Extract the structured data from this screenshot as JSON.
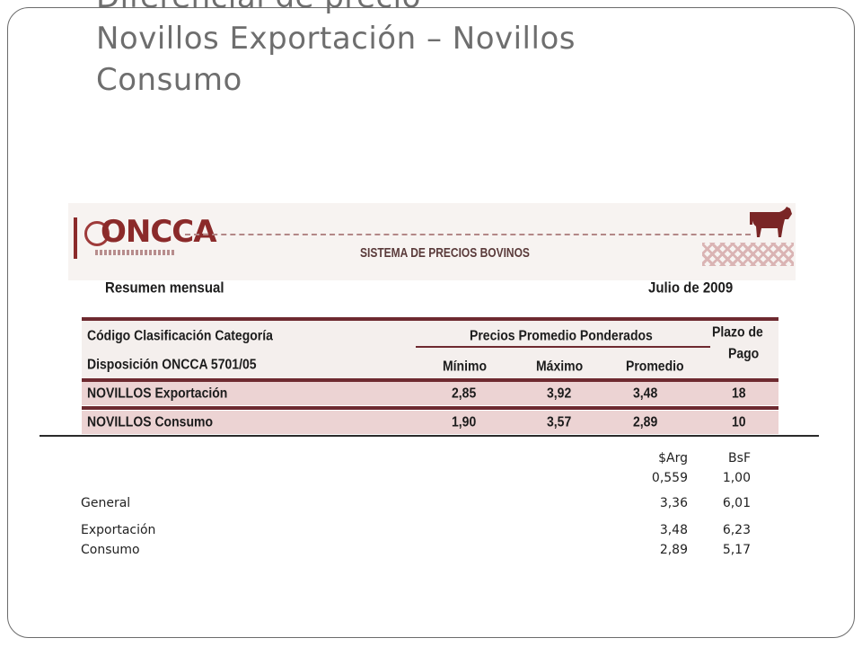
{
  "slide": {
    "title_lines": [
      "Diferencial de precio",
      "Novillos Exportación – Novillos",
      "Consumo"
    ]
  },
  "banner": {
    "logo_text": "ONCCA",
    "system_title": "SISTEMA DE PRECIOS BOVINOS"
  },
  "report": {
    "heading": "Resumen mensual",
    "period": "Julio de 2009",
    "header_col1_line1": "Código  Clasificación Categoría",
    "header_col1_line2": "Disposición ONCCA 5701/05",
    "header_prices": "Precios Promedio Ponderados",
    "header_min": "Mínimo",
    "header_max": "Máximo",
    "header_avg": "Promedio",
    "header_term_line1": "Plazo de",
    "header_term_line2": "Pago",
    "rows": [
      {
        "label": "NOVILLOS Exportación",
        "min": "2,85",
        "max": "3,92",
        "avg": "3,48",
        "term": "18"
      },
      {
        "label": "NOVILLOS Consumo",
        "min": "1,90",
        "max": "3,57",
        "avg": "2,89",
        "term": "10"
      }
    ]
  },
  "summary": {
    "col_arg": "$Arg",
    "col_bsf": "BsF",
    "rate_arg": "0,559",
    "rate_bsf": "1,00",
    "rows": [
      {
        "label": "General",
        "arg": "3,36",
        "bsf": "6,01"
      },
      {
        "label": "Exportación",
        "arg": "3,48",
        "bsf": "6,23"
      },
      {
        "label": "Consumo",
        "arg": "2,89",
        "bsf": "5,17"
      }
    ]
  },
  "colors": {
    "accent": "#6e2a30",
    "row_fill": "#ecd3d3",
    "title_gray": "#6e6e6e"
  }
}
